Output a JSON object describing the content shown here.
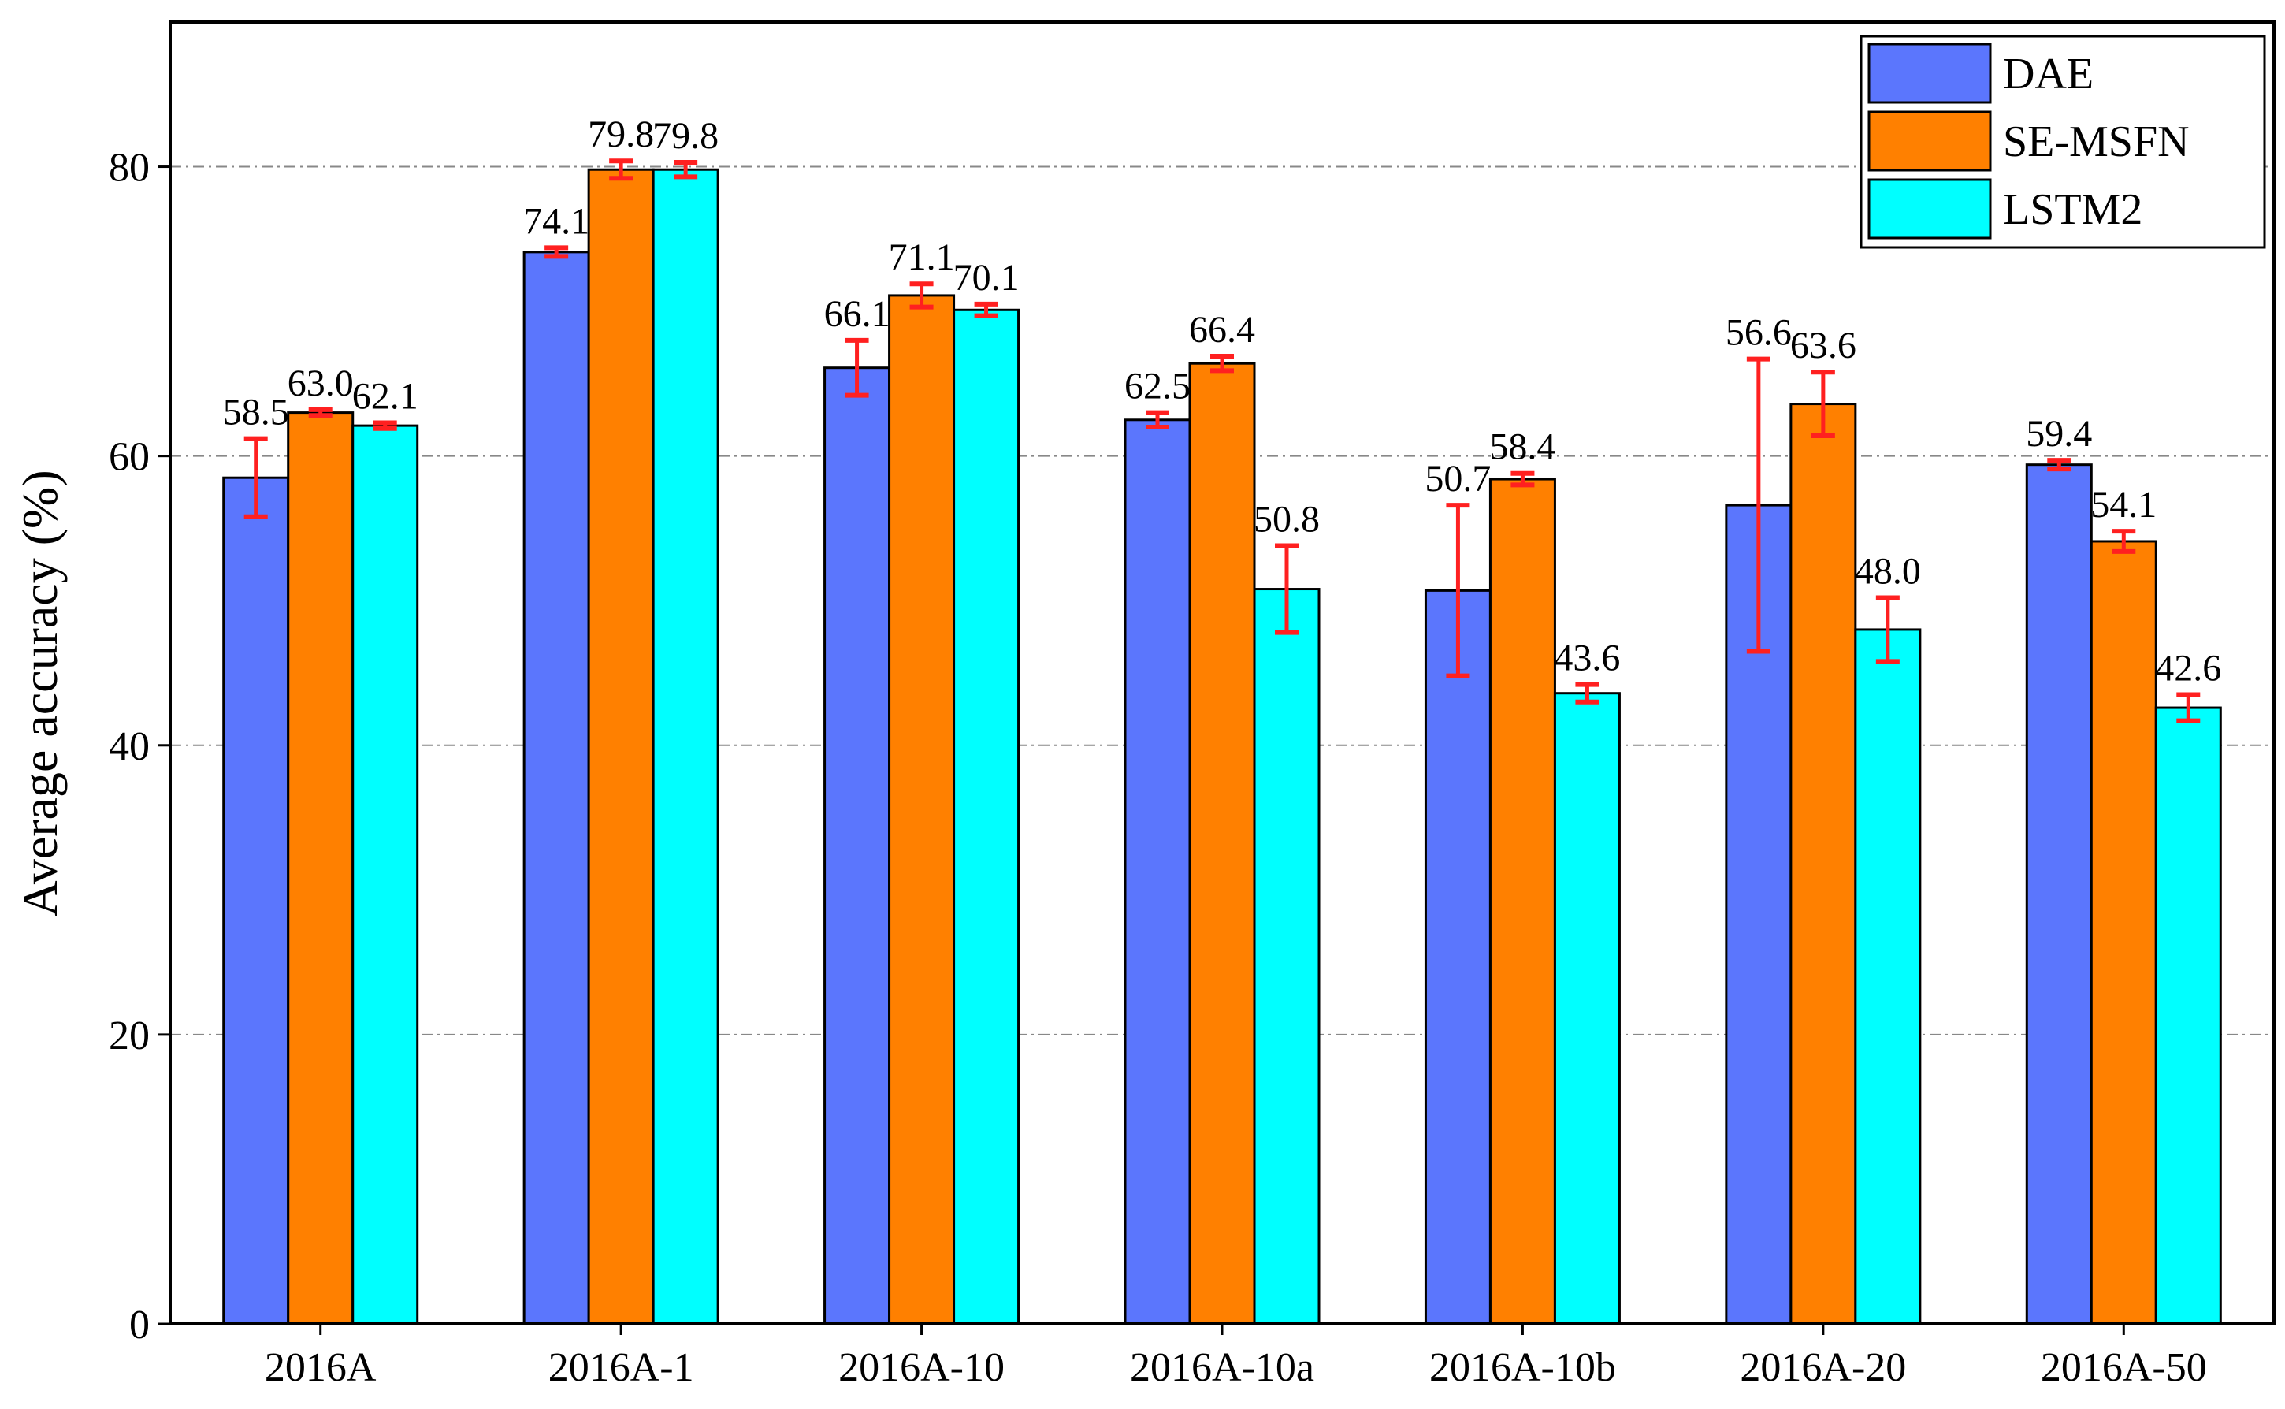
{
  "chart_data": {
    "type": "bar",
    "title": "",
    "xlabel": "",
    "ylabel": "Average accuracy (%)",
    "ylim": [
      0,
      90
    ],
    "yticks": [
      0,
      20,
      40,
      60,
      80
    ],
    "grid": "horizontal dash-dot",
    "legend_position": "top-right",
    "categories": [
      "2016A",
      "2016A-1",
      "2016A-10",
      "2016A-10a",
      "2016A-10b",
      "2016A-20",
      "2016A-50"
    ],
    "series": [
      {
        "name": "DAE",
        "color": "#5b76fd",
        "values": [
          58.5,
          74.1,
          66.1,
          62.5,
          50.7,
          56.6,
          59.4
        ],
        "labels": [
          "58.5",
          "74.1",
          "66.1",
          "62.5",
          "50.7",
          "56.6",
          "59.4"
        ],
        "errors": [
          2.7,
          0.3,
          1.9,
          0.5,
          5.9,
          10.1,
          0.3
        ]
      },
      {
        "name": "SE-MSFN",
        "color": "#ff8000",
        "values": [
          63.0,
          79.8,
          71.1,
          66.4,
          58.4,
          63.6,
          54.1
        ],
        "labels": [
          "63.0",
          "79.8",
          "71.1",
          "66.4",
          "58.4",
          "63.6",
          "54.1"
        ],
        "errors": [
          0.2,
          0.6,
          0.8,
          0.5,
          0.4,
          2.2,
          0.7
        ]
      },
      {
        "name": "LSTM2",
        "color": "#00ffff",
        "values": [
          62.1,
          79.8,
          70.1,
          50.8,
          43.6,
          48.0,
          42.6
        ],
        "labels": [
          "62.1",
          "79.8",
          "70.1",
          "50.8",
          "43.6",
          "48.0",
          "42.6"
        ],
        "errors": [
          0.2,
          0.5,
          0.4,
          3.0,
          0.6,
          2.2,
          0.9
        ]
      }
    ],
    "error_bar_color": "#ff2020"
  }
}
